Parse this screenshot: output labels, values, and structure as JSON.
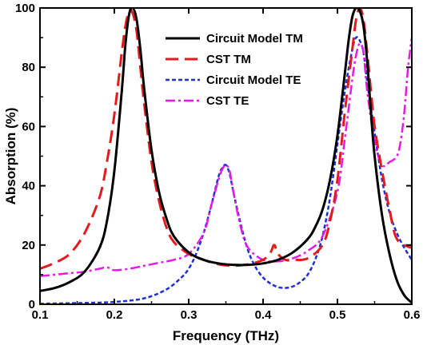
{
  "chart_data": {
    "type": "line",
    "title": "",
    "xlabel": "Frequency (THz)",
    "ylabel": "Absorption (%)",
    "xlim": [
      0.1,
      0.6
    ],
    "ylim": [
      0,
      100
    ],
    "x_ticks": [
      "0.1",
      "0.2",
      "0.3",
      "0.4",
      "0.5",
      "0.6"
    ],
    "y_ticks": [
      "0",
      "20",
      "40",
      "60",
      "80",
      "100"
    ],
    "grid": false,
    "legend_position": "top-right",
    "series": [
      {
        "name": "Circuit Model TM",
        "color": "#000000",
        "style": "solid",
        "x": [
          0.1,
          0.12,
          0.14,
          0.16,
          0.18,
          0.19,
          0.2,
          0.21,
          0.215,
          0.22,
          0.225,
          0.23,
          0.235,
          0.24,
          0.25,
          0.26,
          0.27,
          0.28,
          0.3,
          0.32,
          0.34,
          0.36,
          0.38,
          0.4,
          0.42,
          0.44,
          0.46,
          0.47,
          0.48,
          0.49,
          0.5,
          0.51,
          0.515,
          0.52,
          0.525,
          0.53,
          0.535,
          0.54,
          0.545,
          0.55,
          0.56,
          0.57,
          0.58,
          0.59,
          0.6
        ],
        "y": [
          4.5,
          5.5,
          7.5,
          11,
          19,
          28,
          45,
          72,
          88,
          98,
          100,
          96,
          86,
          73,
          52,
          38,
          29,
          23,
          17.5,
          15,
          13.8,
          13.3,
          13.3,
          13.8,
          15,
          17.5,
          22,
          26,
          32,
          42,
          57,
          78,
          89,
          97,
          100,
          99,
          94,
          82,
          65,
          50,
          30,
          17,
          8,
          3,
          0.5
        ]
      },
      {
        "name": "CST TM",
        "color": "#e41a1c",
        "style": "dash",
        "x": [
          0.1,
          0.12,
          0.14,
          0.16,
          0.18,
          0.19,
          0.2,
          0.21,
          0.215,
          0.22,
          0.225,
          0.23,
          0.235,
          0.24,
          0.25,
          0.26,
          0.27,
          0.28,
          0.3,
          0.32,
          0.34,
          0.36,
          0.38,
          0.4,
          0.41,
          0.415,
          0.42,
          0.43,
          0.44,
          0.46,
          0.48,
          0.49,
          0.5,
          0.51,
          0.52,
          0.525,
          0.53,
          0.535,
          0.54,
          0.545,
          0.55,
          0.56,
          0.57,
          0.58,
          0.6
        ],
        "y": [
          12,
          14,
          17,
          24,
          36,
          48,
          64,
          85,
          94,
          99,
          98,
          92,
          80,
          68,
          48,
          35,
          26,
          21,
          17,
          15,
          13.5,
          13,
          13.5,
          15,
          17.5,
          20,
          17,
          15,
          15,
          15.5,
          20,
          28,
          42,
          65,
          86,
          96,
          100,
          96,
          85,
          72,
          60,
          45,
          32,
          22,
          19
        ]
      },
      {
        "name": "Circuit Model TE",
        "color": "#1f2fd6",
        "style": "dot",
        "x": [
          0.1,
          0.15,
          0.2,
          0.24,
          0.27,
          0.29,
          0.3,
          0.31,
          0.32,
          0.33,
          0.34,
          0.345,
          0.35,
          0.355,
          0.36,
          0.37,
          0.38,
          0.39,
          0.4,
          0.41,
          0.42,
          0.43,
          0.44,
          0.45,
          0.46,
          0.47,
          0.48,
          0.49,
          0.5,
          0.51,
          0.52,
          0.525,
          0.53,
          0.535,
          0.54,
          0.55,
          0.56,
          0.57,
          0.58,
          0.59,
          0.6
        ],
        "y": [
          0.2,
          0.4,
          0.8,
          2,
          5,
          9,
          12,
          17,
          24,
          33,
          43,
          46,
          47,
          44,
          38,
          27,
          18,
          12.5,
          9,
          7,
          5.8,
          5.5,
          6,
          7.5,
          10,
          15,
          23,
          36,
          54,
          72,
          86,
          90,
          89,
          85,
          75,
          58,
          42,
          31,
          24,
          19,
          15
        ]
      },
      {
        "name": "CST TE",
        "color": "#e619e6",
        "style": "dashdot",
        "x": [
          0.1,
          0.12,
          0.14,
          0.16,
          0.18,
          0.19,
          0.2,
          0.22,
          0.24,
          0.26,
          0.28,
          0.3,
          0.32,
          0.33,
          0.34,
          0.345,
          0.35,
          0.355,
          0.36,
          0.37,
          0.38,
          0.4,
          0.42,
          0.44,
          0.46,
          0.48,
          0.5,
          0.51,
          0.52,
          0.525,
          0.53,
          0.535,
          0.54,
          0.55,
          0.56,
          0.57,
          0.58,
          0.585,
          0.59,
          0.595,
          0.6
        ],
        "y": [
          9.5,
          10,
          10.5,
          11,
          12,
          12.5,
          11.5,
          12,
          13,
          14,
          15,
          17,
          24,
          33,
          42,
          45.5,
          47,
          45,
          38,
          26,
          19,
          15,
          14.5,
          15.5,
          18,
          23,
          38,
          56,
          76,
          84,
          88,
          85,
          72,
          55,
          47,
          48,
          50,
          55,
          65,
          80,
          90
        ]
      }
    ]
  }
}
